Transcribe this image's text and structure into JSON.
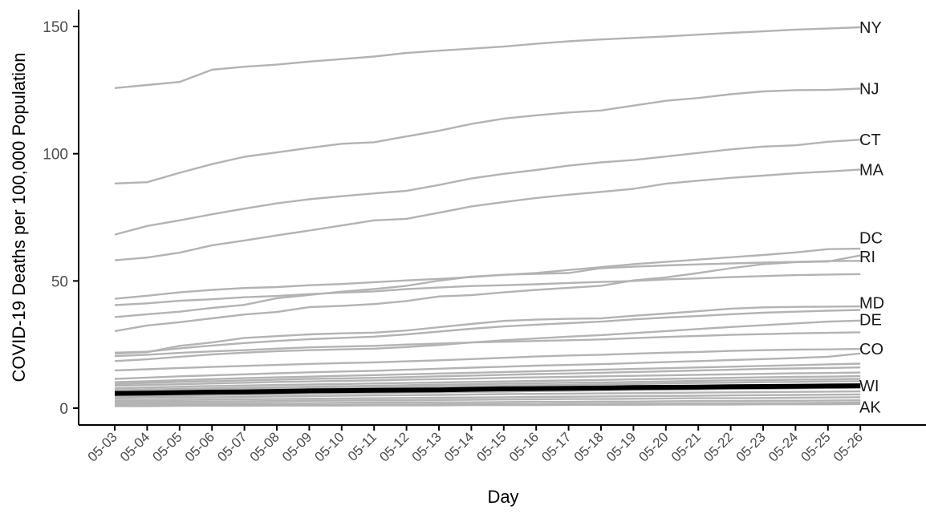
{
  "chart_data": {
    "type": "line",
    "title": "",
    "xlabel": "Day",
    "ylabel": "COVID-19 Deaths per 100,000 Population",
    "x": [
      "05-03",
      "05-04",
      "05-05",
      "05-06",
      "05-07",
      "05-08",
      "05-09",
      "05-10",
      "05-11",
      "05-12",
      "05-13",
      "05-14",
      "05-15",
      "05-16",
      "05-17",
      "05-18",
      "05-19",
      "05-20",
      "05-21",
      "05-22",
      "05-23",
      "05-24",
      "05-25",
      "05-26"
    ],
    "ylim": [
      0,
      150
    ],
    "yticks": [
      0,
      50,
      100,
      150
    ],
    "grid": false,
    "legend": "none",
    "colors": {
      "background": "#ffffff",
      "line": "#b3b3b3",
      "highlight": "#000000",
      "axis": "#000000",
      "tick_text": "#4d4d4d",
      "label_text": "#1a1a1a"
    },
    "series": [
      {
        "name": "NY",
        "highlight": false,
        "values": [
          125.8,
          127,
          128.2,
          133,
          134.2,
          135,
          136.2,
          137.2,
          138.2,
          139.6,
          140.5,
          141.3,
          142.1,
          143.2,
          144.2,
          144.9,
          145.5,
          146.1,
          146.8,
          147.5,
          148.1,
          148.8,
          149.2,
          149.7
        ]
      },
      {
        "name": "NJ",
        "highlight": false,
        "values": [
          88.3,
          88.8,
          92.5,
          95.9,
          98.8,
          100.5,
          102.3,
          103.9,
          104.5,
          106.8,
          109,
          111.7,
          113.8,
          115.1,
          116.2,
          117,
          118.9,
          120.8,
          121.9,
          123.4,
          124.5,
          125,
          125.1,
          125.6
        ]
      },
      {
        "name": "CT",
        "highlight": false,
        "values": [
          68.2,
          71.6,
          73.8,
          76.2,
          78.4,
          80.5,
          82.1,
          83.3,
          84.4,
          85.4,
          87.7,
          90.3,
          92.1,
          93.6,
          95.3,
          96.6,
          97.5,
          98.9,
          100.3,
          101.7,
          102.8,
          103.3,
          104.7,
          105.5
        ]
      },
      {
        "name": "MA",
        "highlight": false,
        "values": [
          58.1,
          59.2,
          61.1,
          64,
          65.9,
          67.9,
          69.8,
          71.8,
          73.8,
          74.4,
          76.8,
          79.3,
          81,
          82.6,
          83.9,
          85,
          86.2,
          88.2,
          89.4,
          90.5,
          91.4,
          92.3,
          93,
          93.8
        ]
      },
      {
        "name": "DC",
        "highlight": false,
        "values": [
          43,
          44.2,
          45.5,
          46.5,
          47.2,
          47.6,
          48.3,
          48.8,
          49.5,
          50.2,
          50.8,
          51.5,
          52.4,
          53.1,
          54.3,
          55.4,
          56.6,
          57.5,
          58.4,
          59.3,
          60.2,
          61.2,
          62.5,
          62.7
        ]
      },
      {
        "name": "RI",
        "highlight": false,
        "values": [
          30.3,
          32.5,
          33.8,
          35.3,
          36.8,
          37.8,
          39.7,
          40.2,
          40.9,
          42.1,
          43.9,
          44.4,
          45.5,
          46.5,
          47.3,
          48.1,
          50.2,
          51.4,
          53.1,
          55,
          56.6,
          57.4,
          57.6,
          60
        ]
      },
      {
        "name": "",
        "highlight": false,
        "values": [
          40.5,
          41.2,
          42.2,
          42.8,
          43.6,
          44.1,
          44.8,
          45.4,
          45.9,
          46.8,
          47.4,
          48,
          48.3,
          48.7,
          49.2,
          49.6,
          50,
          50.6,
          51,
          51.5,
          51.9,
          52.3,
          52.5,
          52.7
        ]
      },
      {
        "name": "",
        "highlight": false,
        "values": [
          35.8,
          36.9,
          37.9,
          39.4,
          40.6,
          43.2,
          44.5,
          45.8,
          46.8,
          48.1,
          50.1,
          51.7,
          52.4,
          52.8,
          53.1,
          55,
          55.6,
          56.1,
          56.5,
          56.9,
          57.2,
          57.5,
          57.8,
          57.9
        ]
      },
      {
        "name": "MD",
        "highlight": false,
        "values": [
          21.5,
          22,
          24.5,
          25.8,
          27.6,
          28.3,
          29,
          29.4,
          29.7,
          30.5,
          31.8,
          33.1,
          34.3,
          34.8,
          35.1,
          35.3,
          36.3,
          37.2,
          38.1,
          39.1,
          39.6,
          39.8,
          39.9,
          40
        ]
      },
      {
        "name": "",
        "highlight": false,
        "values": [
          21.8,
          22.2,
          23.5,
          24.6,
          25.6,
          26.4,
          27.1,
          27.6,
          28.1,
          29,
          30.1,
          31.2,
          32.1,
          32.8,
          33.4,
          34,
          34.9,
          35.6,
          36.2,
          36.9,
          37.5,
          37.9,
          38.3,
          38.6
        ]
      },
      {
        "name": "DE",
        "highlight": false,
        "values": [
          18.5,
          19.2,
          20.2,
          21.1,
          21.8,
          22.4,
          22.8,
          23.1,
          23.4,
          24,
          24.8,
          25.8,
          26.7,
          27.4,
          28.1,
          28.7,
          29.5,
          30.3,
          31.1,
          31.9,
          32.6,
          33.3,
          34,
          34.4
        ]
      },
      {
        "name": "",
        "highlight": false,
        "values": [
          20.5,
          21,
          21.7,
          22.3,
          22.8,
          23.4,
          23.9,
          24.2,
          24.5,
          25,
          25.4,
          25.8,
          26.1,
          26.4,
          26.7,
          27,
          27.5,
          28,
          28.4,
          28.8,
          29.1,
          29.4,
          29.6,
          29.8
        ]
      },
      {
        "name": "CO",
        "highlight": false,
        "values": [
          14.8,
          15.3,
          15.8,
          16.2,
          16.6,
          17,
          17.4,
          17.7,
          18,
          18.4,
          18.8,
          19.3,
          19.8,
          20.3,
          20.7,
          21,
          21.4,
          21.8,
          22.1,
          22.5,
          22.8,
          23,
          23.1,
          23.3
        ]
      },
      {
        "name": "",
        "highlight": false,
        "values": [
          11.5,
          12,
          12.5,
          12.9,
          13.3,
          13.7,
          14.1,
          14.4,
          14.7,
          15.1,
          15.5,
          15.9,
          16.3,
          16.7,
          17,
          17.3,
          17.7,
          18.1,
          18.5,
          18.9,
          19.3,
          19.7,
          20.2,
          21.5
        ]
      },
      {
        "name": "",
        "highlight": false,
        "values": [
          10.2,
          10.6,
          11,
          11.4,
          11.8,
          12.1,
          12.4,
          12.7,
          13,
          13.3,
          13.6,
          13.9,
          14.2,
          14.5,
          14.8,
          15.1,
          15.4,
          15.7,
          16,
          16.3,
          16.6,
          16.9,
          17.2,
          17.5
        ]
      },
      {
        "name": "",
        "highlight": false,
        "values": [
          9.5,
          9.9,
          10.3,
          10.6,
          10.9,
          11.2,
          11.5,
          11.7,
          11.9,
          12.2,
          12.5,
          12.8,
          13.1,
          13.4,
          13.6,
          13.9,
          14.2,
          14.5,
          14.8,
          15.1,
          15.4,
          15.6,
          15.8,
          16
        ]
      },
      {
        "name": "",
        "highlight": false,
        "values": [
          8.8,
          9.1,
          9.4,
          9.7,
          10,
          10.3,
          10.5,
          10.7,
          10.9,
          11.2,
          11.4,
          11.6,
          11.9,
          12.1,
          12.3,
          12.5,
          12.7,
          12.9,
          13.1,
          13.3,
          13.5,
          13.7,
          13.8,
          14
        ]
      },
      {
        "name": "",
        "highlight": false,
        "values": [
          7.8,
          8.1,
          8.4,
          8.7,
          8.9,
          9.1,
          9.3,
          9.5,
          9.7,
          9.9,
          10.1,
          10.3,
          10.5,
          10.7,
          10.9,
          11.1,
          11.3,
          11.5,
          11.7,
          11.9,
          12.1,
          12.3,
          12.4,
          12.6
        ]
      },
      {
        "name": "",
        "highlight": false,
        "values": [
          7,
          7.3,
          7.6,
          7.8,
          8,
          8.2,
          8.4,
          8.6,
          8.8,
          9,
          9.2,
          9.4,
          9.6,
          9.8,
          10,
          10.1,
          10.3,
          10.5,
          10.7,
          10.9,
          11,
          11.2,
          11.3,
          11.5
        ]
      },
      {
        "name": "",
        "highlight": false,
        "values": [
          6.5,
          6.7,
          6.9,
          7.1,
          7.3,
          7.5,
          7.7,
          7.9,
          8.1,
          8.3,
          8.5,
          8.6,
          8.8,
          9,
          9.1,
          9.3,
          9.5,
          9.7,
          9.9,
          10,
          10.2,
          10.3,
          10.5,
          10.6
        ]
      },
      {
        "name": "",
        "highlight": false,
        "values": [
          5.5,
          5.7,
          5.9,
          6.1,
          6.3,
          6.5,
          6.7,
          6.9,
          7.1,
          7.2,
          7.4,
          7.6,
          7.8,
          7.9,
          8.1,
          8.2,
          8.4,
          8.5,
          8.7,
          8.8,
          9,
          9.1,
          9.3,
          9.4
        ]
      },
      {
        "name": "",
        "highlight": false,
        "values": [
          4.5,
          4.7,
          4.9,
          5.1,
          5.3,
          5.4,
          5.6,
          5.8,
          5.9,
          6.1,
          6.2,
          6.4,
          6.5,
          6.7,
          6.8,
          7,
          7.1,
          7.2,
          7.4,
          7.5,
          7.6,
          7.8,
          7.9,
          8
        ]
      },
      {
        "name": "",
        "highlight": false,
        "values": [
          3.8,
          4,
          4.1,
          4.3,
          4.4,
          4.6,
          4.7,
          4.9,
          5,
          5.1,
          5.2,
          5.4,
          5.5,
          5.6,
          5.7,
          5.8,
          5.9,
          6,
          6.1,
          6.2,
          6.3,
          6.4,
          6.5,
          6.6
        ]
      },
      {
        "name": "",
        "highlight": false,
        "values": [
          3,
          3.1,
          3.2,
          3.4,
          3.5,
          3.6,
          3.7,
          3.8,
          3.9,
          4,
          4.1,
          4.2,
          4.3,
          4.4,
          4.5,
          4.6,
          4.7,
          4.8,
          4.9,
          5,
          5.1,
          5.2,
          5.3,
          5.4
        ]
      },
      {
        "name": "",
        "highlight": false,
        "values": [
          2.3,
          2.4,
          2.5,
          2.6,
          2.7,
          2.8,
          2.9,
          3,
          3.1,
          3.1,
          3.2,
          3.3,
          3.4,
          3.5,
          3.6,
          3.6,
          3.7,
          3.8,
          3.9,
          3.9,
          4,
          4.1,
          4.2,
          4.3
        ]
      },
      {
        "name": "",
        "highlight": false,
        "values": [
          1.6,
          1.7,
          1.8,
          1.8,
          1.9,
          2,
          2,
          2.1,
          2.2,
          2.2,
          2.3,
          2.3,
          2.4,
          2.5,
          2.5,
          2.6,
          2.6,
          2.7,
          2.8,
          2.8,
          2.9,
          2.9,
          3,
          3.1
        ]
      },
      {
        "name": "",
        "highlight": false,
        "values": [
          1,
          1,
          1.1,
          1.1,
          1.2,
          1.2,
          1.3,
          1.3,
          1.4,
          1.4,
          1.5,
          1.5,
          1.6,
          1.6,
          1.7,
          1.7,
          1.8,
          1.8,
          1.9,
          1.9,
          2,
          2,
          2.1,
          2.2
        ]
      },
      {
        "name": "AK",
        "highlight": false,
        "values": [
          0.8,
          0.8,
          0.9,
          0.9,
          0.9,
          1,
          1,
          1,
          1.1,
          1.1,
          1.1,
          1.2,
          1.2,
          1.2,
          1.3,
          1.3,
          1.3,
          1.4,
          1.4,
          1.4,
          1.5,
          1.5,
          1.5,
          1.6
        ]
      },
      {
        "name": "WI",
        "highlight": true,
        "values": [
          5.8,
          5.9,
          6.1,
          6.3,
          6.4,
          6.6,
          6.8,
          6.9,
          7,
          7.1,
          7.2,
          7.4,
          7.6,
          7.7,
          7.8,
          7.9,
          8.1,
          8.2,
          8.3,
          8.4,
          8.5,
          8.6,
          8.7,
          8.8
        ]
      }
    ],
    "labels": [
      {
        "text": "NY",
        "y": 149.7
      },
      {
        "text": "NJ",
        "y": 125.6
      },
      {
        "text": "CT",
        "y": 105.5
      },
      {
        "text": "MA",
        "y": 93.8
      },
      {
        "text": "DC",
        "y": 67
      },
      {
        "text": "RI",
        "y": 59.5
      },
      {
        "text": "MD",
        "y": 41.5
      },
      {
        "text": "DE",
        "y": 34.8
      },
      {
        "text": "CO",
        "y": 23.3
      },
      {
        "text": "WI",
        "y": 8.8
      },
      {
        "text": "AK",
        "y": 0.5
      }
    ]
  }
}
